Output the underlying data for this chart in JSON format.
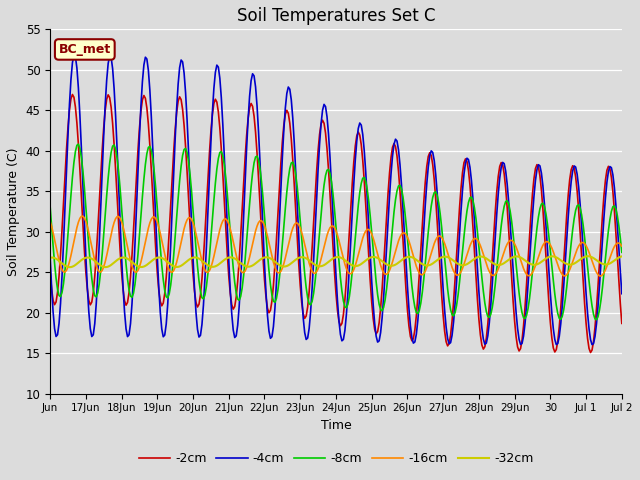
{
  "title": "Soil Temperatures Set C",
  "xlabel": "Time",
  "ylabel": "Soil Temperature (C)",
  "ylim": [
    10,
    55
  ],
  "yticks": [
    10,
    15,
    20,
    25,
    30,
    35,
    40,
    45,
    50,
    55
  ],
  "background_color": "#dcdcdc",
  "annotation_text": "BC_met",
  "annotation_bg": "#ffffcc",
  "annotation_border": "#8B0000",
  "tick_labels": [
    "Jun",
    "17Jun",
    "18Jun",
    "19Jun",
    "20Jun",
    "21Jun",
    "22Jun",
    "23Jun",
    "24Jun",
    "25Jun",
    "26Jun",
    "27Jun",
    "28Jun",
    "29Jun",
    "30",
    "Jul 1",
    "Jul 2"
  ],
  "series": {
    "neg2cm": {
      "label": "-2cm",
      "color": "#cc0000",
      "lw": 1.2
    },
    "neg4cm": {
      "label": "-4cm",
      "color": "#0000cc",
      "lw": 1.2
    },
    "neg8cm": {
      "label": "-8cm",
      "color": "#00cc00",
      "lw": 1.2
    },
    "neg16cm": {
      "label": "-16cm",
      "color": "#ff8800",
      "lw": 1.2
    },
    "neg32cm": {
      "label": "-32cm",
      "color": "#cccc00",
      "lw": 1.5
    }
  }
}
